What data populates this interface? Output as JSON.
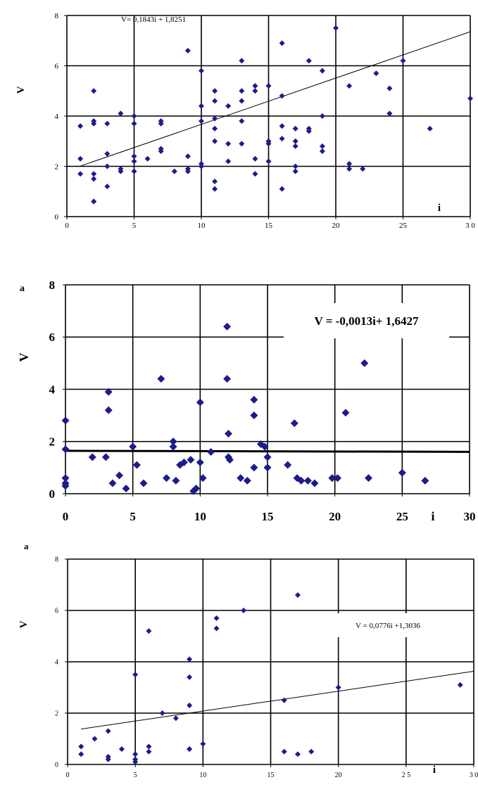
{
  "chart_data": [
    {
      "type": "scatter",
      "panel_label": "",
      "xlabel": "i",
      "ylabel": "V",
      "xlim": [
        0,
        30
      ],
      "ylim": [
        0,
        8
      ],
      "xticks": [
        0,
        5,
        10,
        15,
        20,
        25,
        30
      ],
      "yticks": [
        0,
        2,
        4,
        6,
        8
      ],
      "x_tick_labels": [
        "0",
        "5",
        "10",
        "15",
        "20",
        "25",
        "3 0"
      ],
      "grid": true,
      "marker_color": "#1c1c8c",
      "equation": "V= 0,1843i + 1,8251",
      "trendline": {
        "slope": 0.1843,
        "intercept": 1.8251,
        "x_range": [
          1,
          30
        ]
      },
      "x": [
        1,
        1,
        1,
        2,
        2,
        2,
        2,
        2,
        2,
        2,
        3,
        3,
        3,
        3,
        4,
        4,
        4,
        5,
        5,
        5,
        5,
        5,
        6,
        7,
        7,
        7,
        7,
        8,
        9,
        9,
        9,
        9,
        10,
        10,
        10,
        10,
        10,
        11,
        11,
        11,
        11,
        11,
        11,
        11,
        12,
        12,
        12,
        13,
        13,
        13,
        13,
        13,
        14,
        14,
        14,
        14,
        15,
        15,
        15,
        15,
        16,
        16,
        16,
        16,
        16,
        17,
        17,
        17,
        17,
        17,
        18,
        18,
        18,
        19,
        19,
        19,
        19,
        20,
        21,
        21,
        21,
        22,
        23,
        24,
        24,
        25,
        27,
        30
      ],
      "y": [
        3.6,
        2.3,
        1.7,
        5.0,
        3.8,
        3.7,
        1.7,
        1.5,
        0.6,
        0.6,
        3.7,
        2.5,
        2.0,
        1.2,
        4.1,
        1.9,
        1.8,
        4.0,
        3.7,
        2.4,
        2.2,
        1.8,
        2.3,
        3.8,
        3.7,
        2.7,
        2.6,
        1.8,
        6.6,
        2.4,
        1.8,
        1.9,
        5.8,
        4.4,
        3.8,
        2.1,
        2.0,
        5.0,
        4.6,
        3.9,
        3.5,
        3.0,
        1.4,
        1.1,
        4.4,
        2.9,
        2.2,
        6.2,
        5.0,
        4.6,
        3.8,
        2.9,
        5.2,
        5.0,
        2.3,
        1.7,
        5.2,
        3.0,
        2.9,
        2.2,
        6.9,
        4.8,
        3.6,
        3.1,
        1.1,
        3.5,
        3.0,
        2.8,
        2.0,
        1.8,
        6.2,
        3.5,
        3.4,
        5.8,
        4.0,
        2.8,
        2.6,
        7.5,
        5.2,
        2.1,
        1.9,
        1.9,
        5.7,
        5.1,
        4.1,
        6.2,
        3.5,
        4.7
      ]
    },
    {
      "type": "scatter",
      "panel_label": "a",
      "xlabel": "i",
      "ylabel": "V",
      "xlim": [
        0,
        30
      ],
      "ylim": [
        0,
        8
      ],
      "xticks": [
        0,
        5,
        10,
        15,
        20,
        25,
        30
      ],
      "yticks": [
        0,
        2,
        4,
        6,
        8
      ],
      "x_tick_labels": [
        "0",
        "5",
        "10",
        "15",
        "20",
        "25",
        "30"
      ],
      "grid": true,
      "marker_color": "#1c1c8c",
      "equation": "V = -0,0013i+ 1,6427",
      "trendline": {
        "slope": -0.0013,
        "intercept": 1.6427,
        "x_range": [
          0,
          30
        ]
      },
      "x": [
        0,
        0,
        0,
        0,
        0,
        2,
        3,
        3.2,
        3.2,
        3.5,
        4,
        4.5,
        5,
        5.3,
        5.8,
        7.1,
        7.5,
        8,
        8,
        8.2,
        8.5,
        8.8,
        9.3,
        9.5,
        9.7,
        10,
        10,
        10.2,
        10.8,
        12,
        12,
        12.1,
        12.1,
        12.2,
        13,
        13.5,
        14,
        14,
        14,
        14.5,
        14.8,
        15,
        15,
        16.5,
        17,
        17.2,
        17.5,
        18,
        18.5,
        19.8,
        20.2,
        20.8,
        22.2,
        22.5,
        25,
        26.7
      ],
      "y": [
        2.8,
        1.7,
        0.6,
        0.4,
        0.3,
        1.4,
        1.4,
        3.9,
        3.2,
        0.4,
        0.7,
        0.2,
        1.8,
        1.1,
        0.4,
        4.4,
        0.6,
        2.0,
        1.8,
        0.5,
        1.1,
        1.2,
        1.3,
        0.1,
        0.2,
        3.5,
        1.2,
        0.6,
        1.6,
        6.4,
        4.4,
        2.3,
        1.4,
        1.3,
        0.6,
        0.5,
        3.6,
        3.0,
        1.0,
        1.9,
        1.8,
        1.4,
        1.0,
        1.1,
        2.7,
        0.6,
        0.5,
        0.5,
        0.4,
        0.6,
        0.6,
        3.1,
        5.0,
        0.6,
        0.8,
        0.5
      ]
    },
    {
      "type": "scatter",
      "panel_label": "a",
      "xlabel": "i",
      "ylabel": "V",
      "xlim": [
        0,
        30
      ],
      "ylim": [
        0,
        8
      ],
      "xticks": [
        0,
        5,
        10,
        15,
        20,
        25,
        30
      ],
      "yticks": [
        0,
        2,
        4,
        6,
        8
      ],
      "x_tick_labels": [
        "0",
        "5",
        "10",
        "15",
        "20",
        "2 5",
        "3 0"
      ],
      "grid": true,
      "marker_color": "#1c1c8c",
      "equation": "V = 0,0776i +1,3036",
      "trendline": {
        "slope": 0.0776,
        "intercept": 1.3036,
        "x_range": [
          1,
          30
        ]
      },
      "x": [
        1,
        1,
        2,
        3,
        3,
        3,
        4,
        5,
        5,
        5,
        5,
        6,
        6,
        6,
        7,
        8,
        9,
        9,
        9,
        9,
        9,
        10,
        11,
        11,
        13,
        16,
        16,
        17,
        17,
        18,
        20,
        29
      ],
      "y": [
        0.7,
        0.4,
        1.0,
        1.3,
        0.3,
        0.2,
        0.6,
        3.5,
        0.4,
        0.2,
        0.1,
        5.2,
        0.7,
        0.5,
        2.0,
        1.8,
        4.1,
        3.4,
        2.3,
        0.6,
        0.6,
        0.8,
        5.7,
        5.3,
        6.0,
        2.5,
        0.5,
        6.6,
        0.4,
        0.5,
        3.0,
        3.1
      ]
    }
  ]
}
